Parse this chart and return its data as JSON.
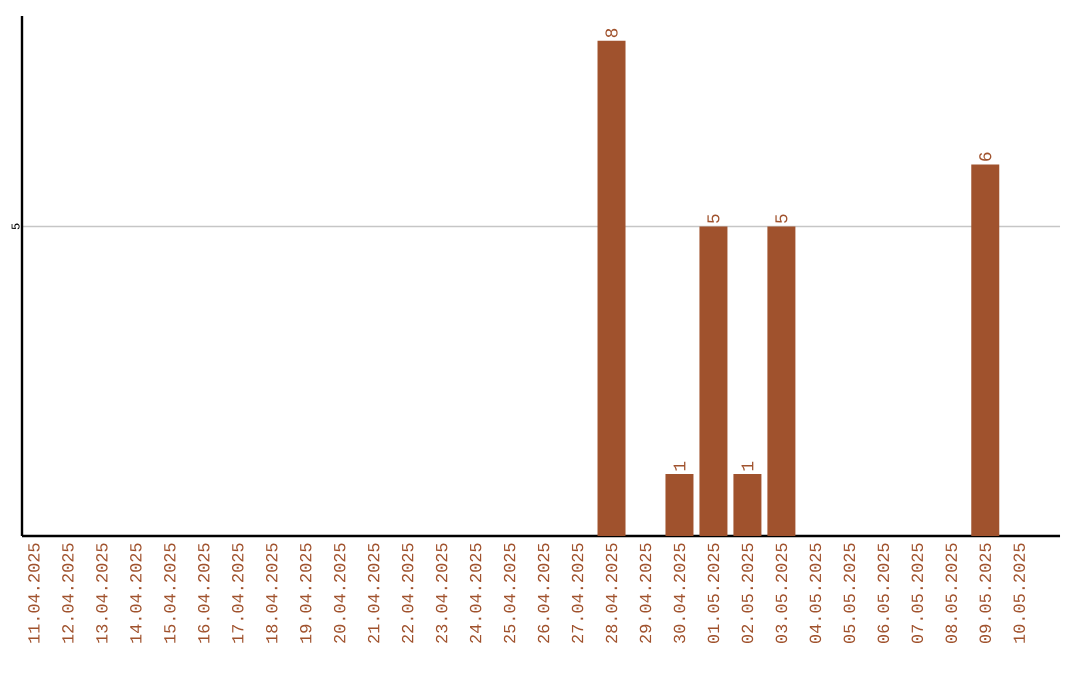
{
  "chart_data": {
    "type": "bar",
    "categories": [
      "11.04.2025",
      "12.04.2025",
      "13.04.2025",
      "14.04.2025",
      "15.04.2025",
      "16.04.2025",
      "17.04.2025",
      "18.04.2025",
      "19.04.2025",
      "20.04.2025",
      "21.04.2025",
      "22.04.2025",
      "23.04.2025",
      "24.04.2025",
      "25.04.2025",
      "26.04.2025",
      "27.04.2025",
      "28.04.2025",
      "29.04.2025",
      "30.04.2025",
      "01.05.2025",
      "02.05.2025",
      "03.05.2025",
      "04.05.2025",
      "05.05.2025",
      "06.05.2025",
      "07.05.2025",
      "08.05.2025",
      "09.05.2025",
      "10.05.2025"
    ],
    "values": [
      null,
      null,
      null,
      null,
      null,
      null,
      null,
      null,
      null,
      null,
      null,
      null,
      null,
      null,
      null,
      null,
      null,
      8,
      null,
      1,
      5,
      1,
      5,
      null,
      null,
      null,
      null,
      null,
      6,
      null
    ],
    "color": "#a0522d",
    "ylim": [
      0,
      8.4
    ],
    "yticks": [
      5
    ],
    "grid": "y",
    "data_labels": true
  }
}
